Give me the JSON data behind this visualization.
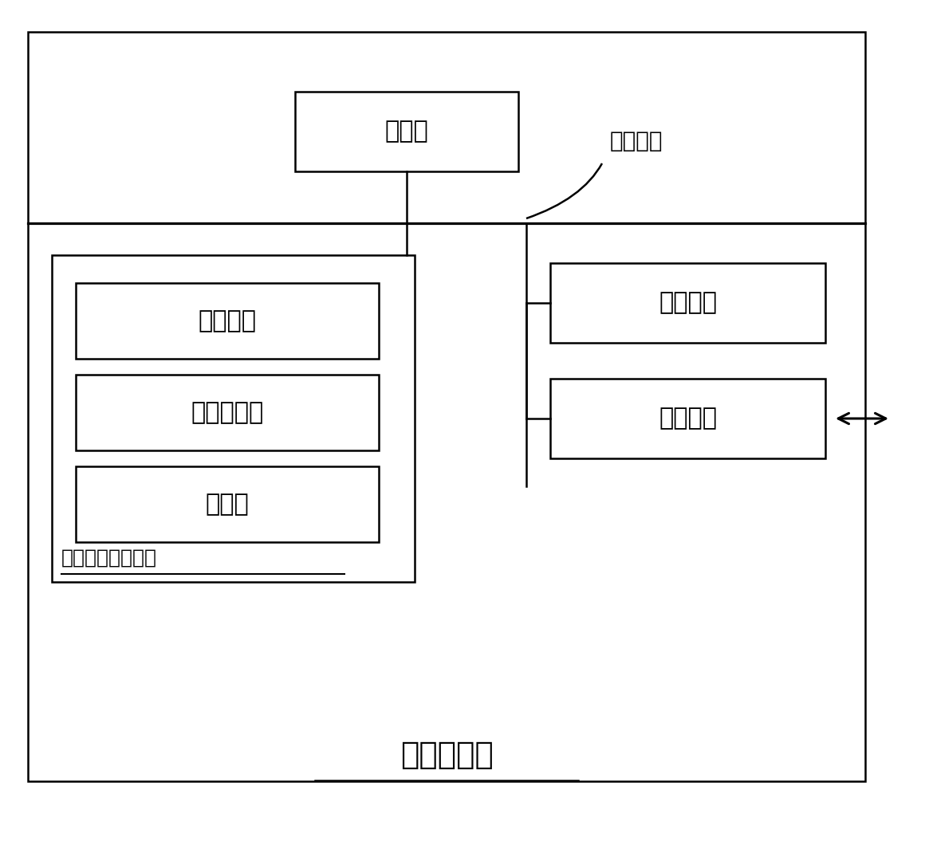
{
  "title": "计算机设备",
  "system_bus_label": "系统总线",
  "processor_label": "处理器",
  "memory_label": "内存储器",
  "network_label": "网络接口",
  "os_label": "操作系统",
  "program_label": "计算机程序",
  "database_label": "数据库",
  "storage_label": "非易失性存储介质",
  "bg_color": "#ffffff",
  "line_color": "#000000",
  "font_color": "#000000",
  "font_size_title": 28,
  "font_size_label": 22,
  "font_size_bus": 20,
  "font_size_storage": 18
}
